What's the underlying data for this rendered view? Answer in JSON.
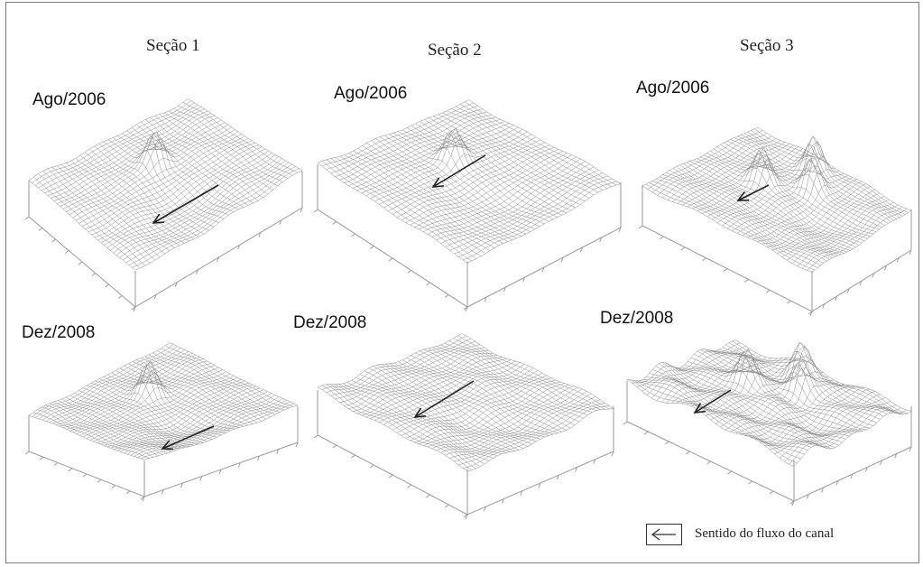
{
  "sections": [
    "Seção 1",
    "Seção 2",
    "Seção 3"
  ],
  "dates": [
    "Ago/2006",
    "Dez/2008"
  ],
  "legend": {
    "label": "Sentido do fluxo do canal",
    "icon": "left-arrow-icon"
  },
  "panels": [
    {
      "section": 0,
      "date": 0,
      "label": "Ago/2006",
      "roughness": 0.35,
      "peak_count": 1
    },
    {
      "section": 1,
      "date": 0,
      "label": "Ago/2006",
      "roughness": 0.3,
      "peak_count": 1
    },
    {
      "section": 2,
      "date": 0,
      "label": "Ago/2006",
      "roughness": 0.4,
      "peak_count": 3
    },
    {
      "section": 0,
      "date": 1,
      "label": "Dez/2008",
      "roughness": 0.35,
      "peak_count": 1
    },
    {
      "section": 1,
      "date": 1,
      "label": "Dez/2008",
      "roughness": 0.5,
      "peak_count": 0
    },
    {
      "section": 2,
      "date": 1,
      "label": "Dez/2008",
      "roughness": 0.9,
      "peak_count": 3
    }
  ],
  "colors": {
    "mesh": "#8c8c8c",
    "arrow": "#222222",
    "axes": "#999999"
  }
}
